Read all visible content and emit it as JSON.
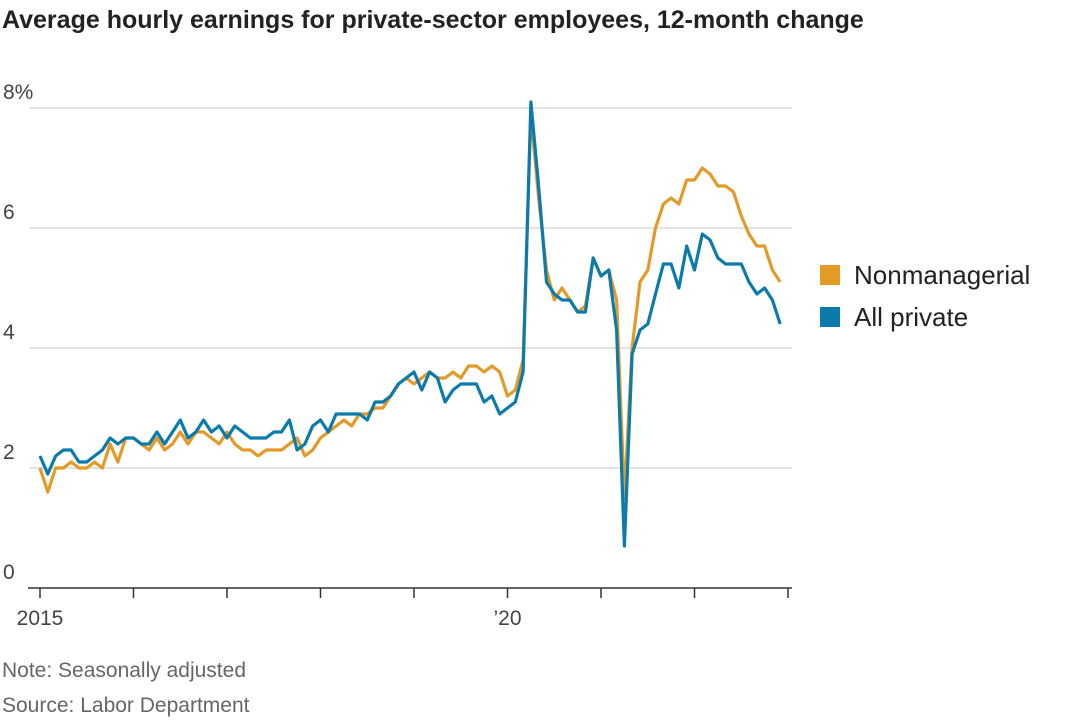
{
  "chart_data": {
    "type": "line",
    "title": "Average hourly earnings for private-sector employees, 12-month change",
    "notes": [
      "Note: Seasonally adjusted",
      "Source: Labor Department"
    ],
    "x": [
      2015,
      2015.083,
      2015.167,
      2015.25,
      2015.333,
      2015.417,
      2015.5,
      2015.583,
      2015.667,
      2015.75,
      2015.833,
      2015.917,
      2016,
      2016.083,
      2016.167,
      2016.25,
      2016.333,
      2016.417,
      2016.5,
      2016.583,
      2016.667,
      2016.75,
      2016.833,
      2016.917,
      2017,
      2017.083,
      2017.167,
      2017.25,
      2017.333,
      2017.417,
      2017.5,
      2017.583,
      2017.667,
      2017.75,
      2017.833,
      2017.917,
      2018,
      2018.083,
      2018.167,
      2018.25,
      2018.333,
      2018.417,
      2018.5,
      2018.583,
      2018.667,
      2018.75,
      2018.833,
      2018.917,
      2019,
      2019.083,
      2019.167,
      2019.25,
      2019.333,
      2019.417,
      2019.5,
      2019.583,
      2019.667,
      2019.75,
      2019.833,
      2019.917,
      2020,
      2020.083,
      2020.167,
      2020.25,
      2020.333,
      2020.417,
      2020.5,
      2020.583,
      2020.667,
      2020.75,
      2020.833,
      2020.917,
      2021,
      2021.083,
      2021.167,
      2021.25,
      2021.333,
      2021.417,
      2021.5,
      2021.583,
      2021.667,
      2021.75,
      2021.833,
      2021.917,
      2022,
      2022.083,
      2022.167,
      2022.25,
      2022.333,
      2022.417,
      2022.5,
      2022.583,
      2022.667,
      2022.75,
      2022.833,
      2022.917
    ],
    "series": [
      {
        "name": "Nonmanagerial",
        "color": "#e39a27",
        "values": [
          2.0,
          1.6,
          2.0,
          2.0,
          2.1,
          2.0,
          2.0,
          2.1,
          2.0,
          2.4,
          2.1,
          2.5,
          2.5,
          2.4,
          2.3,
          2.5,
          2.3,
          2.4,
          2.6,
          2.4,
          2.6,
          2.6,
          2.5,
          2.4,
          2.6,
          2.4,
          2.3,
          2.3,
          2.2,
          2.3,
          2.3,
          2.3,
          2.4,
          2.5,
          2.2,
          2.3,
          2.5,
          2.6,
          2.7,
          2.8,
          2.7,
          2.9,
          2.9,
          3.0,
          3.0,
          3.2,
          3.4,
          3.5,
          3.4,
          3.5,
          3.6,
          3.5,
          3.5,
          3.6,
          3.5,
          3.7,
          3.7,
          3.6,
          3.7,
          3.6,
          3.2,
          3.3,
          3.8,
          7.9,
          6.5,
          5.3,
          4.8,
          5.0,
          4.8,
          4.6,
          4.7,
          5.5,
          5.2,
          5.3,
          4.8,
          1.5,
          4.0,
          5.1,
          5.3,
          6.0,
          6.4,
          6.5,
          6.4,
          6.8,
          6.8,
          7.0,
          6.9,
          6.7,
          6.7,
          6.6,
          6.2,
          5.9,
          5.7,
          5.7,
          5.3,
          5.1
        ]
      },
      {
        "name": "All private",
        "color": "#0a7bab",
        "values": [
          2.2,
          1.9,
          2.2,
          2.3,
          2.3,
          2.1,
          2.1,
          2.2,
          2.3,
          2.5,
          2.4,
          2.5,
          2.5,
          2.4,
          2.4,
          2.6,
          2.4,
          2.6,
          2.8,
          2.5,
          2.6,
          2.8,
          2.6,
          2.7,
          2.5,
          2.7,
          2.6,
          2.5,
          2.5,
          2.5,
          2.6,
          2.6,
          2.8,
          2.3,
          2.4,
          2.7,
          2.8,
          2.6,
          2.9,
          2.9,
          2.9,
          2.9,
          2.8,
          3.1,
          3.1,
          3.2,
          3.4,
          3.5,
          3.6,
          3.3,
          3.6,
          3.5,
          3.1,
          3.3,
          3.4,
          3.4,
          3.4,
          3.1,
          3.2,
          2.9,
          3.0,
          3.1,
          3.6,
          8.1,
          6.7,
          5.1,
          4.9,
          4.8,
          4.8,
          4.6,
          4.6,
          5.5,
          5.2,
          5.3,
          4.3,
          0.7,
          3.9,
          4.3,
          4.4,
          4.9,
          5.4,
          5.4,
          5.0,
          5.7,
          5.3,
          5.9,
          5.8,
          5.5,
          5.4,
          5.4,
          5.4,
          5.1,
          4.9,
          5.0,
          4.8,
          4.4
        ]
      }
    ],
    "xlim": [
      2015,
      2023
    ],
    "xticks": [
      2015,
      2016,
      2017,
      2018,
      2019,
      2020,
      2021,
      2022,
      2023
    ],
    "xlabels": [
      {
        "value": 2015,
        "label": "2015"
      },
      {
        "value": 2020,
        "label": "’20"
      }
    ],
    "ylim": [
      0,
      8
    ],
    "yticks": [
      0,
      2,
      4,
      {
        "value": 6,
        "label": "6"
      },
      {
        "value": 8,
        "label": "8%"
      }
    ],
    "grid": true
  }
}
